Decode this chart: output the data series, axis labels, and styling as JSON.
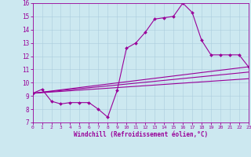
{
  "title": "",
  "xlabel": "Windchill (Refroidissement éolien,°C)",
  "ylabel": "",
  "bg_color": "#cce8f0",
  "line_color": "#990099",
  "xlim": [
    0,
    23
  ],
  "ylim": [
    7,
    16
  ],
  "xticks": [
    0,
    1,
    2,
    3,
    4,
    5,
    6,
    7,
    8,
    9,
    10,
    11,
    12,
    13,
    14,
    15,
    16,
    17,
    18,
    19,
    20,
    21,
    22,
    23
  ],
  "yticks": [
    7,
    8,
    9,
    10,
    11,
    12,
    13,
    14,
    15,
    16
  ],
  "line1_x": [
    0,
    1,
    2,
    3,
    4,
    5,
    6,
    7,
    8,
    9,
    10,
    11,
    12,
    13,
    14,
    15,
    16,
    17,
    18,
    19,
    20,
    21,
    22,
    23
  ],
  "line1_y": [
    9.2,
    9.5,
    8.6,
    8.4,
    8.5,
    8.5,
    8.5,
    8.0,
    7.4,
    9.4,
    12.6,
    13.0,
    13.8,
    14.8,
    14.9,
    15.0,
    16.0,
    15.3,
    13.2,
    12.1,
    12.1,
    12.1,
    12.1,
    11.2
  ],
  "line2_x": [
    0,
    23
  ],
  "line2_y": [
    9.2,
    11.2
  ],
  "line3_x": [
    0,
    23
  ],
  "line3_y": [
    9.2,
    10.8
  ],
  "line4_x": [
    0,
    23
  ],
  "line4_y": [
    9.2,
    10.3
  ]
}
